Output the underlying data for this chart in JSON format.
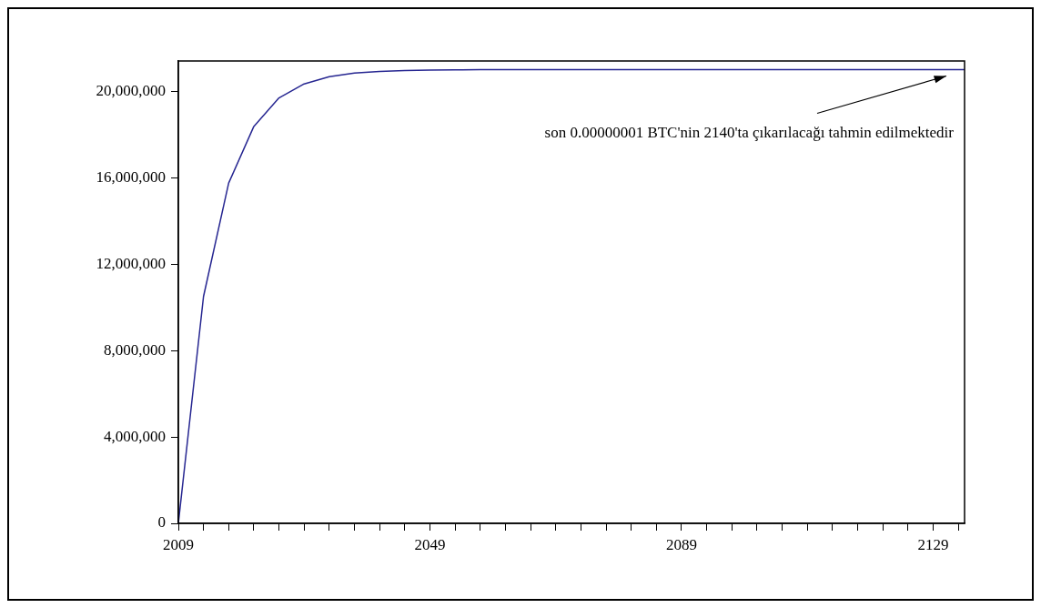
{
  "chart_data": {
    "type": "line",
    "x": [
      2009,
      2013,
      2017,
      2021,
      2025,
      2029,
      2033,
      2037,
      2041,
      2045,
      2049,
      2053,
      2057,
      2061,
      2134
    ],
    "series": [
      {
        "color": "#262691",
        "values": [
          0,
          10500000,
          15750000,
          18370000,
          19690000,
          20340000,
          20670000,
          20840000,
          20920000,
          20960000,
          20980000,
          20990000,
          21000000,
          21000000,
          21000000
        ]
      }
    ],
    "xlim": [
      2009,
      2134
    ],
    "xticks": [
      2009,
      {
        "value": 2013,
        "label": null
      },
      {
        "value": 2017,
        "label": null
      },
      {
        "value": 2021,
        "label": null
      },
      {
        "value": 2025,
        "label": null
      },
      {
        "value": 2029,
        "label": null
      },
      {
        "value": 2033,
        "label": null
      },
      {
        "value": 2037,
        "label": null
      },
      {
        "value": 2041,
        "label": null
      },
      {
        "value": 2045,
        "label": null
      },
      2049,
      {
        "value": 2053,
        "label": null
      },
      {
        "value": 2057,
        "label": null
      },
      {
        "value": 2061,
        "label": null
      },
      {
        "value": 2065,
        "label": null
      },
      {
        "value": 2069,
        "label": null
      },
      {
        "value": 2073,
        "label": null
      },
      {
        "value": 2077,
        "label": null
      },
      {
        "value": 2081,
        "label": null
      },
      {
        "value": 2085,
        "label": null
      },
      2089,
      {
        "value": 2093,
        "label": null
      },
      {
        "value": 2097,
        "label": null
      },
      {
        "value": 2101,
        "label": null
      },
      {
        "value": 2105,
        "label": null
      },
      {
        "value": 2109,
        "label": null
      },
      {
        "value": 2113,
        "label": null
      },
      {
        "value": 2117,
        "label": null
      },
      {
        "value": 2121,
        "label": null
      },
      {
        "value": 2125,
        "label": null
      },
      2129,
      {
        "value": 2133,
        "label": null
      }
    ],
    "ylim": [
      0,
      21400000
    ],
    "yticks": [
      0,
      {
        "value": 4000000,
        "label": "4,000,000"
      },
      {
        "value": 8000000,
        "label": "8,000,000"
      },
      {
        "value": 12000000,
        "label": "12,000,000"
      },
      {
        "value": 16000000,
        "label": "16,000,000"
      },
      {
        "value": 20000000,
        "label": "20,000,000"
      }
    ],
    "grid": false,
    "legend": false,
    "annotations": [
      "son 0.00000001 BTC'nin 2140'ta çıkarılacağı tahmin edilmektedir"
    ]
  }
}
